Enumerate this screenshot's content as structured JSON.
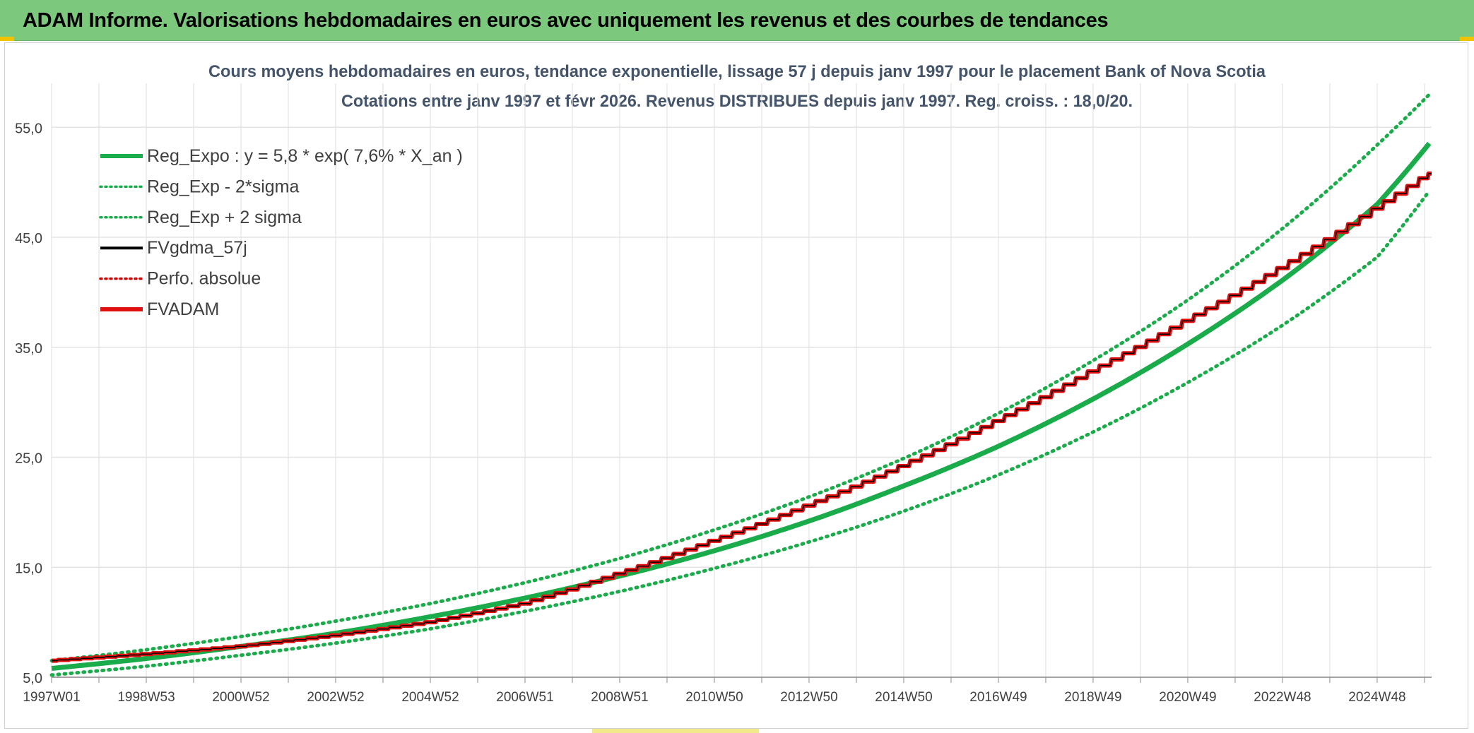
{
  "header": {
    "title": "ADAM Informe. Valorisations hebdomadaires en euros avec uniquement les revenus et des courbes de tendances"
  },
  "colors": {
    "header_bg": "#7cc97e",
    "reg_expo": "#1aac4a",
    "fvadam": "#e01010",
    "fvgdma": "#000000",
    "grid": "#e3e3e3"
  },
  "chart_data": {
    "type": "line",
    "title": "Cours moyens hebdomadaires en euros, tendance exponentielle, lissage 57 j depuis janv 1997 pour le placement Bank of Nova Scotia",
    "subtitle": "Cotations entre janv 1997 et févr 2026. Revenus DISTRIBUES depuis janv 1997. Reg. croiss. : 18,0/20.",
    "xlabel": "",
    "ylabel": "",
    "x_range_years": [
      1997.0,
      2026.15
    ],
    "ylim": [
      5,
      59
    ],
    "y_ticks": [
      "5,0",
      "15,0",
      "25,0",
      "35,0",
      "45,0",
      "55,0"
    ],
    "x_tick_labels": [
      "1997W01",
      "1998W53",
      "2000W52",
      "2002W52",
      "2004W52",
      "2006W51",
      "2008W51",
      "2010W50",
      "2012W50",
      "2014W50",
      "2016W49",
      "2018W49",
      "2020W49",
      "2022W48",
      "2024W48"
    ],
    "grid": true,
    "legend_position": "top-left",
    "legend": [
      {
        "key": "reg_expo",
        "label": "Reg_Expo : y = 5,8 * exp( 7,6% *  X_an )",
        "style": "solid-thick",
        "color": "#1aac4a"
      },
      {
        "key": "reg_minus",
        "label": "Reg_Exp - 2*sigma",
        "style": "dotted",
        "color": "#1aac4a"
      },
      {
        "key": "reg_plus",
        "label": "Reg_Exp + 2 sigma",
        "style": "dotted",
        "color": "#1aac4a"
      },
      {
        "key": "fvgdma",
        "label": "FVgdma_57j",
        "style": "solid",
        "color": "#000000"
      },
      {
        "key": "perfo",
        "label": "Perfo. absolue",
        "style": "dotted",
        "color": "#cc0000"
      },
      {
        "key": "fvadam",
        "label": "FVADAM",
        "style": "solid-thick",
        "color": "#e01010"
      }
    ],
    "series": [
      {
        "name": "Reg_Expo",
        "x": [
          1997,
          1999,
          2001,
          2003,
          2005,
          2007,
          2009,
          2011,
          2013,
          2015,
          2017,
          2019,
          2021,
          2023,
          2025,
          2026.15
        ],
        "values": [
          5.8,
          6.7,
          7.8,
          9.0,
          10.5,
          12.2,
          14.2,
          16.5,
          19.2,
          22.4,
          26.0,
          30.3,
          35.3,
          41.1,
          48.0,
          53.8
        ]
      },
      {
        "name": "Reg_Exp - 2*sigma",
        "x": [
          1997,
          1999,
          2001,
          2003,
          2005,
          2007,
          2009,
          2011,
          2013,
          2015,
          2017,
          2019,
          2021,
          2023,
          2025,
          2026.15
        ],
        "values": [
          5.2,
          6.0,
          7.0,
          8.1,
          9.4,
          11.0,
          12.8,
          14.9,
          17.3,
          20.1,
          23.4,
          27.3,
          31.8,
          37.0,
          43.2,
          49.5
        ]
      },
      {
        "name": "Reg_Exp + 2 sigma",
        "x": [
          1997,
          1999,
          2001,
          2003,
          2005,
          2007,
          2009,
          2011,
          2013,
          2015,
          2017,
          2019,
          2021,
          2023,
          2025,
          2026.15
        ],
        "values": [
          6.5,
          7.5,
          8.7,
          10.1,
          11.7,
          13.6,
          15.8,
          18.4,
          21.4,
          24.9,
          29.0,
          33.8,
          39.3,
          45.8,
          53.4,
          58.2
        ]
      },
      {
        "name": "FVADAM",
        "x": [
          1997,
          1999,
          2001,
          2003,
          2005,
          2007,
          2009,
          2011,
          2013,
          2015,
          2017,
          2019,
          2021,
          2023,
          2025,
          2026.15
        ],
        "values": [
          6.5,
          7.1,
          7.8,
          8.8,
          10.0,
          11.7,
          14.4,
          17.4,
          20.6,
          24.2,
          28.3,
          32.8,
          37.4,
          42.2,
          47.6,
          50.8
        ]
      },
      {
        "name": "FVgdma_57j",
        "x": [
          1997,
          1999,
          2001,
          2003,
          2005,
          2007,
          2009,
          2011,
          2013,
          2015,
          2017,
          2019,
          2021,
          2023,
          2025,
          2026.15
        ],
        "values": [
          6.5,
          7.1,
          7.8,
          8.8,
          10.0,
          11.7,
          14.4,
          17.4,
          20.6,
          24.2,
          28.3,
          32.8,
          37.4,
          42.2,
          47.6,
          50.8
        ]
      }
    ]
  }
}
